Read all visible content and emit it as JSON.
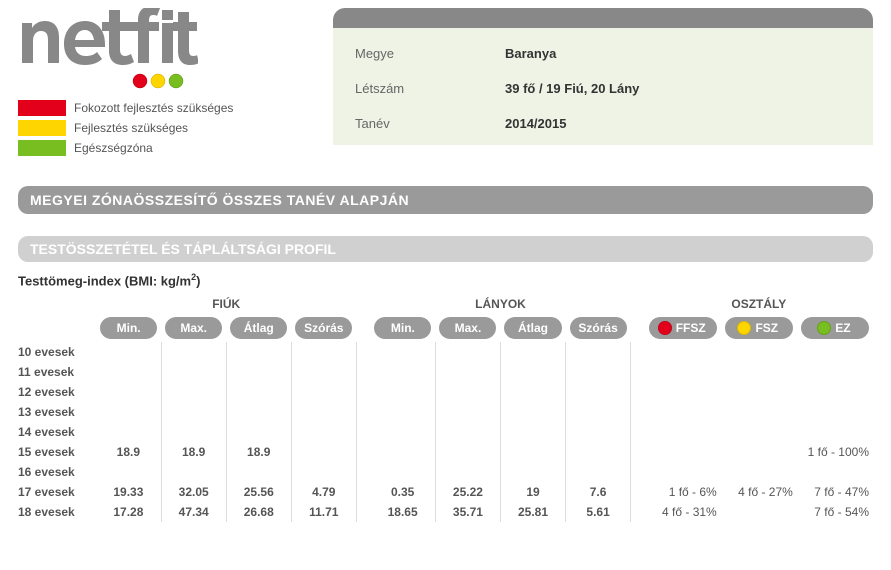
{
  "legend": {
    "ffsz": {
      "label": "Fokozott fejlesztés szükséges",
      "color": "#e2001a"
    },
    "fsz": {
      "label": "Fejlesztés szükséges",
      "color": "#ffd500"
    },
    "ez": {
      "label": "Egészségzóna",
      "color": "#78be20"
    }
  },
  "info": {
    "county_label": "Megye",
    "county_value": "Baranya",
    "count_label": "Létszám",
    "count_value": "39 fő / 19 Fiú, 20 Lány",
    "year_label": "Tanév",
    "year_value": "2014/2015"
  },
  "section_title": "MEGYEI ZÓNAÖSSZESÍTŐ ÖSSZES TANÉV ALAPJÁN",
  "sub_title": "TESTÖSSZETÉTEL ÉS TÁPLÁLTSÁGI PROFIL",
  "metric": {
    "title_prefix": "Testtömeg-index (BMI: kg/m",
    "title_suffix": ")",
    "groups": {
      "boys": "FIÚK",
      "girls": "LÁNYOK",
      "class": "OSZTÁLY"
    },
    "cols": {
      "min": "Min.",
      "max": "Max.",
      "avg": "Átlag",
      "sd": "Szórás"
    },
    "zone_cols": {
      "ffsz": "FFSZ",
      "fsz": "FSZ",
      "ez": "EZ"
    }
  },
  "rows": [
    {
      "age": "10 evesek"
    },
    {
      "age": "11 evesek"
    },
    {
      "age": "12 evesek"
    },
    {
      "age": "13 evesek"
    },
    {
      "age": "14 evesek"
    },
    {
      "age": "15 evesek",
      "b_min": "18.9",
      "b_max": "18.9",
      "b_avg": "18.9",
      "ez": "1 fő - 100%"
    },
    {
      "age": "16 evesek"
    },
    {
      "age": "17 evesek",
      "b_min": "19.33",
      "b_max": "32.05",
      "b_avg": "25.56",
      "b_sd": "4.79",
      "g_min": "0.35",
      "g_max": "25.22",
      "g_avg": "19",
      "g_sd": "7.6",
      "ffsz": "1 fő - 6%",
      "fsz": "4 fő - 27%",
      "ez": "7 fő - 47%"
    },
    {
      "age": "18 evesek",
      "b_min": "17.28",
      "b_max": "47.34",
      "b_avg": "26.68",
      "b_sd": "11.71",
      "g_min": "18.65",
      "g_max": "35.71",
      "g_avg": "25.81",
      "g_sd": "5.61",
      "ffsz": "4 fő - 31%",
      "ez": "7 fő - 54%"
    }
  ],
  "colors": {
    "logo_gray": "#888888",
    "bg_info": "#eef3e5",
    "red": "#e2001a",
    "yellow": "#ffd500",
    "green": "#78be20"
  }
}
